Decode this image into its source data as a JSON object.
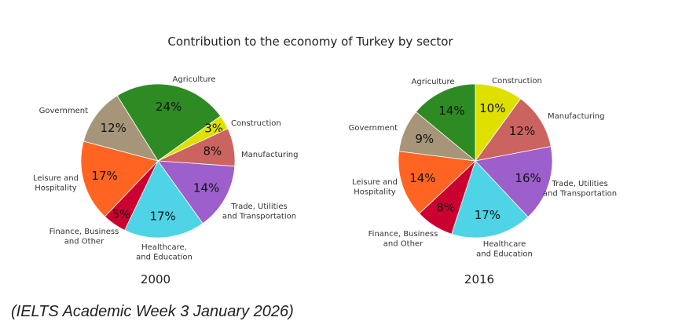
{
  "chart_data": {
    "title": "Contribution to the economy of Turkey by sector",
    "colors": {
      "Agriculture": "#2e8b23",
      "Construction": "#dfe000",
      "Manufacturing": "#cb6461",
      "Trade, Utilities and Transportation": "#9c5fcc",
      "Healthcare and Education": "#4fd3e6",
      "Finance, Business and Other": "#cc0030",
      "Leisure and Hospitality": "#ff6422",
      "Government": "#a69579"
    },
    "charts": [
      {
        "type": "pie",
        "year": "2000",
        "slices": [
          {
            "key": "Agriculture",
            "label": [
              "Agriculture"
            ],
            "value": 24,
            "pct": "24%"
          },
          {
            "key": "Construction",
            "label": [
              "Construction"
            ],
            "value": 3,
            "pct": "3%"
          },
          {
            "key": "Manufacturing",
            "label": [
              "Manufacturing"
            ],
            "value": 8,
            "pct": "8%"
          },
          {
            "key": "Trade, Utilities and Transportation",
            "label": [
              "Trade, Utilities",
              "and Transportation"
            ],
            "value": 14,
            "pct": "14%"
          },
          {
            "key": "Healthcare and Education",
            "label": [
              "Healthcare,",
              "and Education"
            ],
            "value": 17,
            "pct": "17%"
          },
          {
            "key": "Finance, Business and Other",
            "label": [
              "Finance, Business",
              "and Other"
            ],
            "value": 5,
            "pct": "5%"
          },
          {
            "key": "Leisure and Hospitality",
            "label": [
              "Leisure and",
              "Hospitality"
            ],
            "value": 17,
            "pct": "17%"
          },
          {
            "key": "Government",
            "label": [
              "Government"
            ],
            "value": 12,
            "pct": "12%"
          }
        ]
      },
      {
        "type": "pie",
        "year": "2016",
        "slices": [
          {
            "key": "Construction",
            "label": [
              "Construction"
            ],
            "value": 10,
            "pct": "10%"
          },
          {
            "key": "Manufacturing",
            "label": [
              "Manufacturing"
            ],
            "value": 12,
            "pct": "12%"
          },
          {
            "key": "Trade, Utilities and Transportation",
            "label": [
              "Trade, Utilities",
              "and Transportation"
            ],
            "value": 16,
            "pct": "16%"
          },
          {
            "key": "Healthcare and Education",
            "label": [
              "Healthcare",
              "and Education"
            ],
            "value": 17,
            "pct": "17%"
          },
          {
            "key": "Finance, Business and Other",
            "label": [
              "Finance, Business",
              "and Other"
            ],
            "value": 8,
            "pct": "8%"
          },
          {
            "key": "Leisure and Hospitality",
            "label": [
              "Leisure and",
              "Hospitality"
            ],
            "value": 14,
            "pct": "14%"
          },
          {
            "key": "Government",
            "label": [
              "Government"
            ],
            "value": 9,
            "pct": "9%"
          },
          {
            "key": "Agriculture",
            "label": [
              "Agriculture"
            ],
            "value": 14,
            "pct": "14%"
          }
        ]
      }
    ]
  },
  "source": "(IELTS Academic Week 3 January 2026)"
}
